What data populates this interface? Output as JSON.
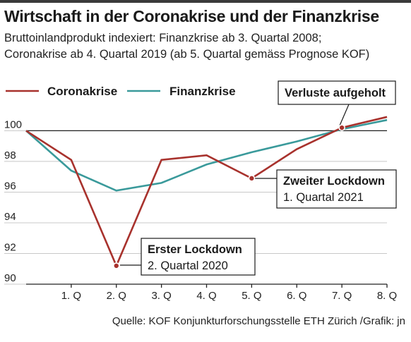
{
  "header": {
    "title": "Wirtschaft in der Coronakrise und der Finanzkrise",
    "subtitle_line1": "Bruttoinlandprodukt indexiert: Finanzkrise ab 3. Quartal 2008;",
    "subtitle_line2": "Coronakrise ab 4. Quartal 2019 (ab 5. Quartal gemäss Prognose KOF)"
  },
  "footer": {
    "source": "Quelle: KOF Konjunkturforschungsstelle ETH Zürich /Grafik: jn"
  },
  "colors": {
    "corona": "#a8322d",
    "finanz": "#3a9a9b",
    "baseline": "#222222"
  },
  "chart_data": {
    "type": "line",
    "x": [
      0,
      1,
      2,
      3,
      4,
      5,
      6,
      7,
      8
    ],
    "x_tick_values": [
      1,
      2,
      3,
      4,
      5,
      6,
      7,
      8
    ],
    "x_tick_labels": [
      "1. Q",
      "2. Q",
      "3. Q",
      "4. Q",
      "5. Q",
      "6. Q",
      "7. Q",
      "8. Q"
    ],
    "xlim": [
      0,
      8
    ],
    "ylim": [
      90,
      100.8
    ],
    "y_ticks": [
      90,
      92,
      94,
      96,
      98,
      100
    ],
    "reference_line": 100,
    "series": [
      {
        "name": "Coronakrise",
        "color": "#a8322d",
        "values": [
          100,
          98.1,
          91.2,
          98.1,
          98.4,
          96.9,
          98.8,
          100.2,
          100.9
        ]
      },
      {
        "name": "Finanzkrise",
        "color": "#3a9a9b",
        "values": [
          100,
          97.4,
          96.1,
          96.6,
          97.8,
          98.6,
          99.3,
          100.1,
          100.7
        ]
      }
    ],
    "legend_position": "top-left",
    "annotations": [
      {
        "series": 0,
        "point": 2,
        "line1": "Erster Lockdown",
        "line2": "2. Quartal 2020"
      },
      {
        "series": 0,
        "point": 5,
        "line1": "Zweiter Lockdown",
        "line2": "1. Quartal 2021"
      },
      {
        "series": 0,
        "point": 7,
        "line1": "Verluste aufgeholt",
        "line2": ""
      }
    ]
  }
}
